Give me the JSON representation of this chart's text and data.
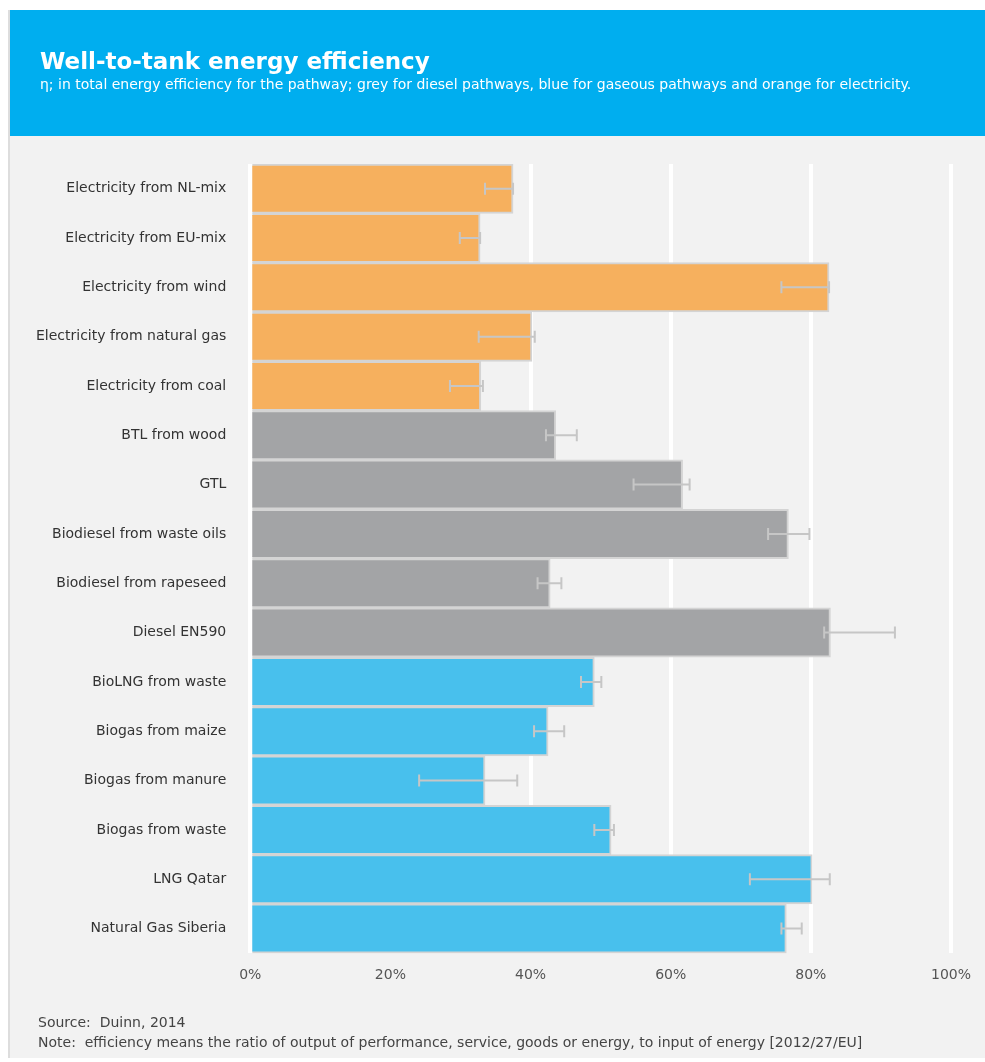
{
  "chart_data": {
    "type": "bar",
    "orientation": "horizontal",
    "title": "Well-to-tank energy efficiency",
    "subtitle": "η; in total energy efficiency for the pathway; grey for diesel pathways, blue for gaseous pathways and orange for electricity.",
    "categories": [
      "Electricity from NL-mix",
      "Electricity from EU-mix",
      "Electricity from wind",
      "Electricity from natural gas",
      "Electricity from coal",
      "BTL from wood",
      "GTL",
      "Biodiesel from waste oils",
      "Biodiesel from rapeseed",
      "Diesel EN590",
      "BioLNG from waste",
      "Biogas from maize",
      "Biogas from manure",
      "Biogas from waste",
      "LNG Qatar",
      "Natural Gas Siberia"
    ],
    "values": [
      37.5,
      32.8,
      82.6,
      40.2,
      32.9,
      43.6,
      61.7,
      76.8,
      42.8,
      82.8,
      49.1,
      42.5,
      33.5,
      51.5,
      80.2,
      76.5
    ],
    "colors": [
      "#f6b05e",
      "#f6b05e",
      "#f6b05e",
      "#f6b05e",
      "#f6b05e",
      "#a3a4a6",
      "#a3a4a6",
      "#a3a4a6",
      "#a3a4a6",
      "#a3a4a6",
      "#48c0ed",
      "#48c0ed",
      "#48c0ed",
      "#48c0ed",
      "#48c0ed",
      "#48c0ed"
    ],
    "errors": [
      [
        33.5,
        37.5
      ],
      [
        29.9,
        32.8
      ],
      [
        75.8,
        82.6
      ],
      [
        32.6,
        40.6
      ],
      [
        28.5,
        33.2
      ],
      [
        42.2,
        46.6
      ],
      [
        54.7,
        62.7
      ],
      [
        73.9,
        79.8
      ],
      [
        41.0,
        44.4
      ],
      [
        81.9,
        92.0
      ],
      [
        47.2,
        50.1
      ],
      [
        40.5,
        44.8
      ],
      [
        24.1,
        38.1
      ],
      [
        49.1,
        51.9
      ],
      [
        71.3,
        82.7
      ],
      [
        75.8,
        78.7
      ]
    ],
    "xlim": [
      0,
      100
    ],
    "xticks": [
      {
        "value": 0,
        "label": "0%"
      },
      {
        "value": 20,
        "label": "20%"
      },
      {
        "value": 40,
        "label": "40%"
      },
      {
        "value": 60,
        "label": "60%"
      },
      {
        "value": 80,
        "label": "80%"
      },
      {
        "value": 100,
        "label": "100%"
      }
    ],
    "grid": "x",
    "legend": false,
    "annotations": [
      "Source:  Duinn, 2014",
      "Note:  efficiency means the ratio of output of performance, service, goods or energy, to input of energy [2012/27/EU]"
    ]
  }
}
